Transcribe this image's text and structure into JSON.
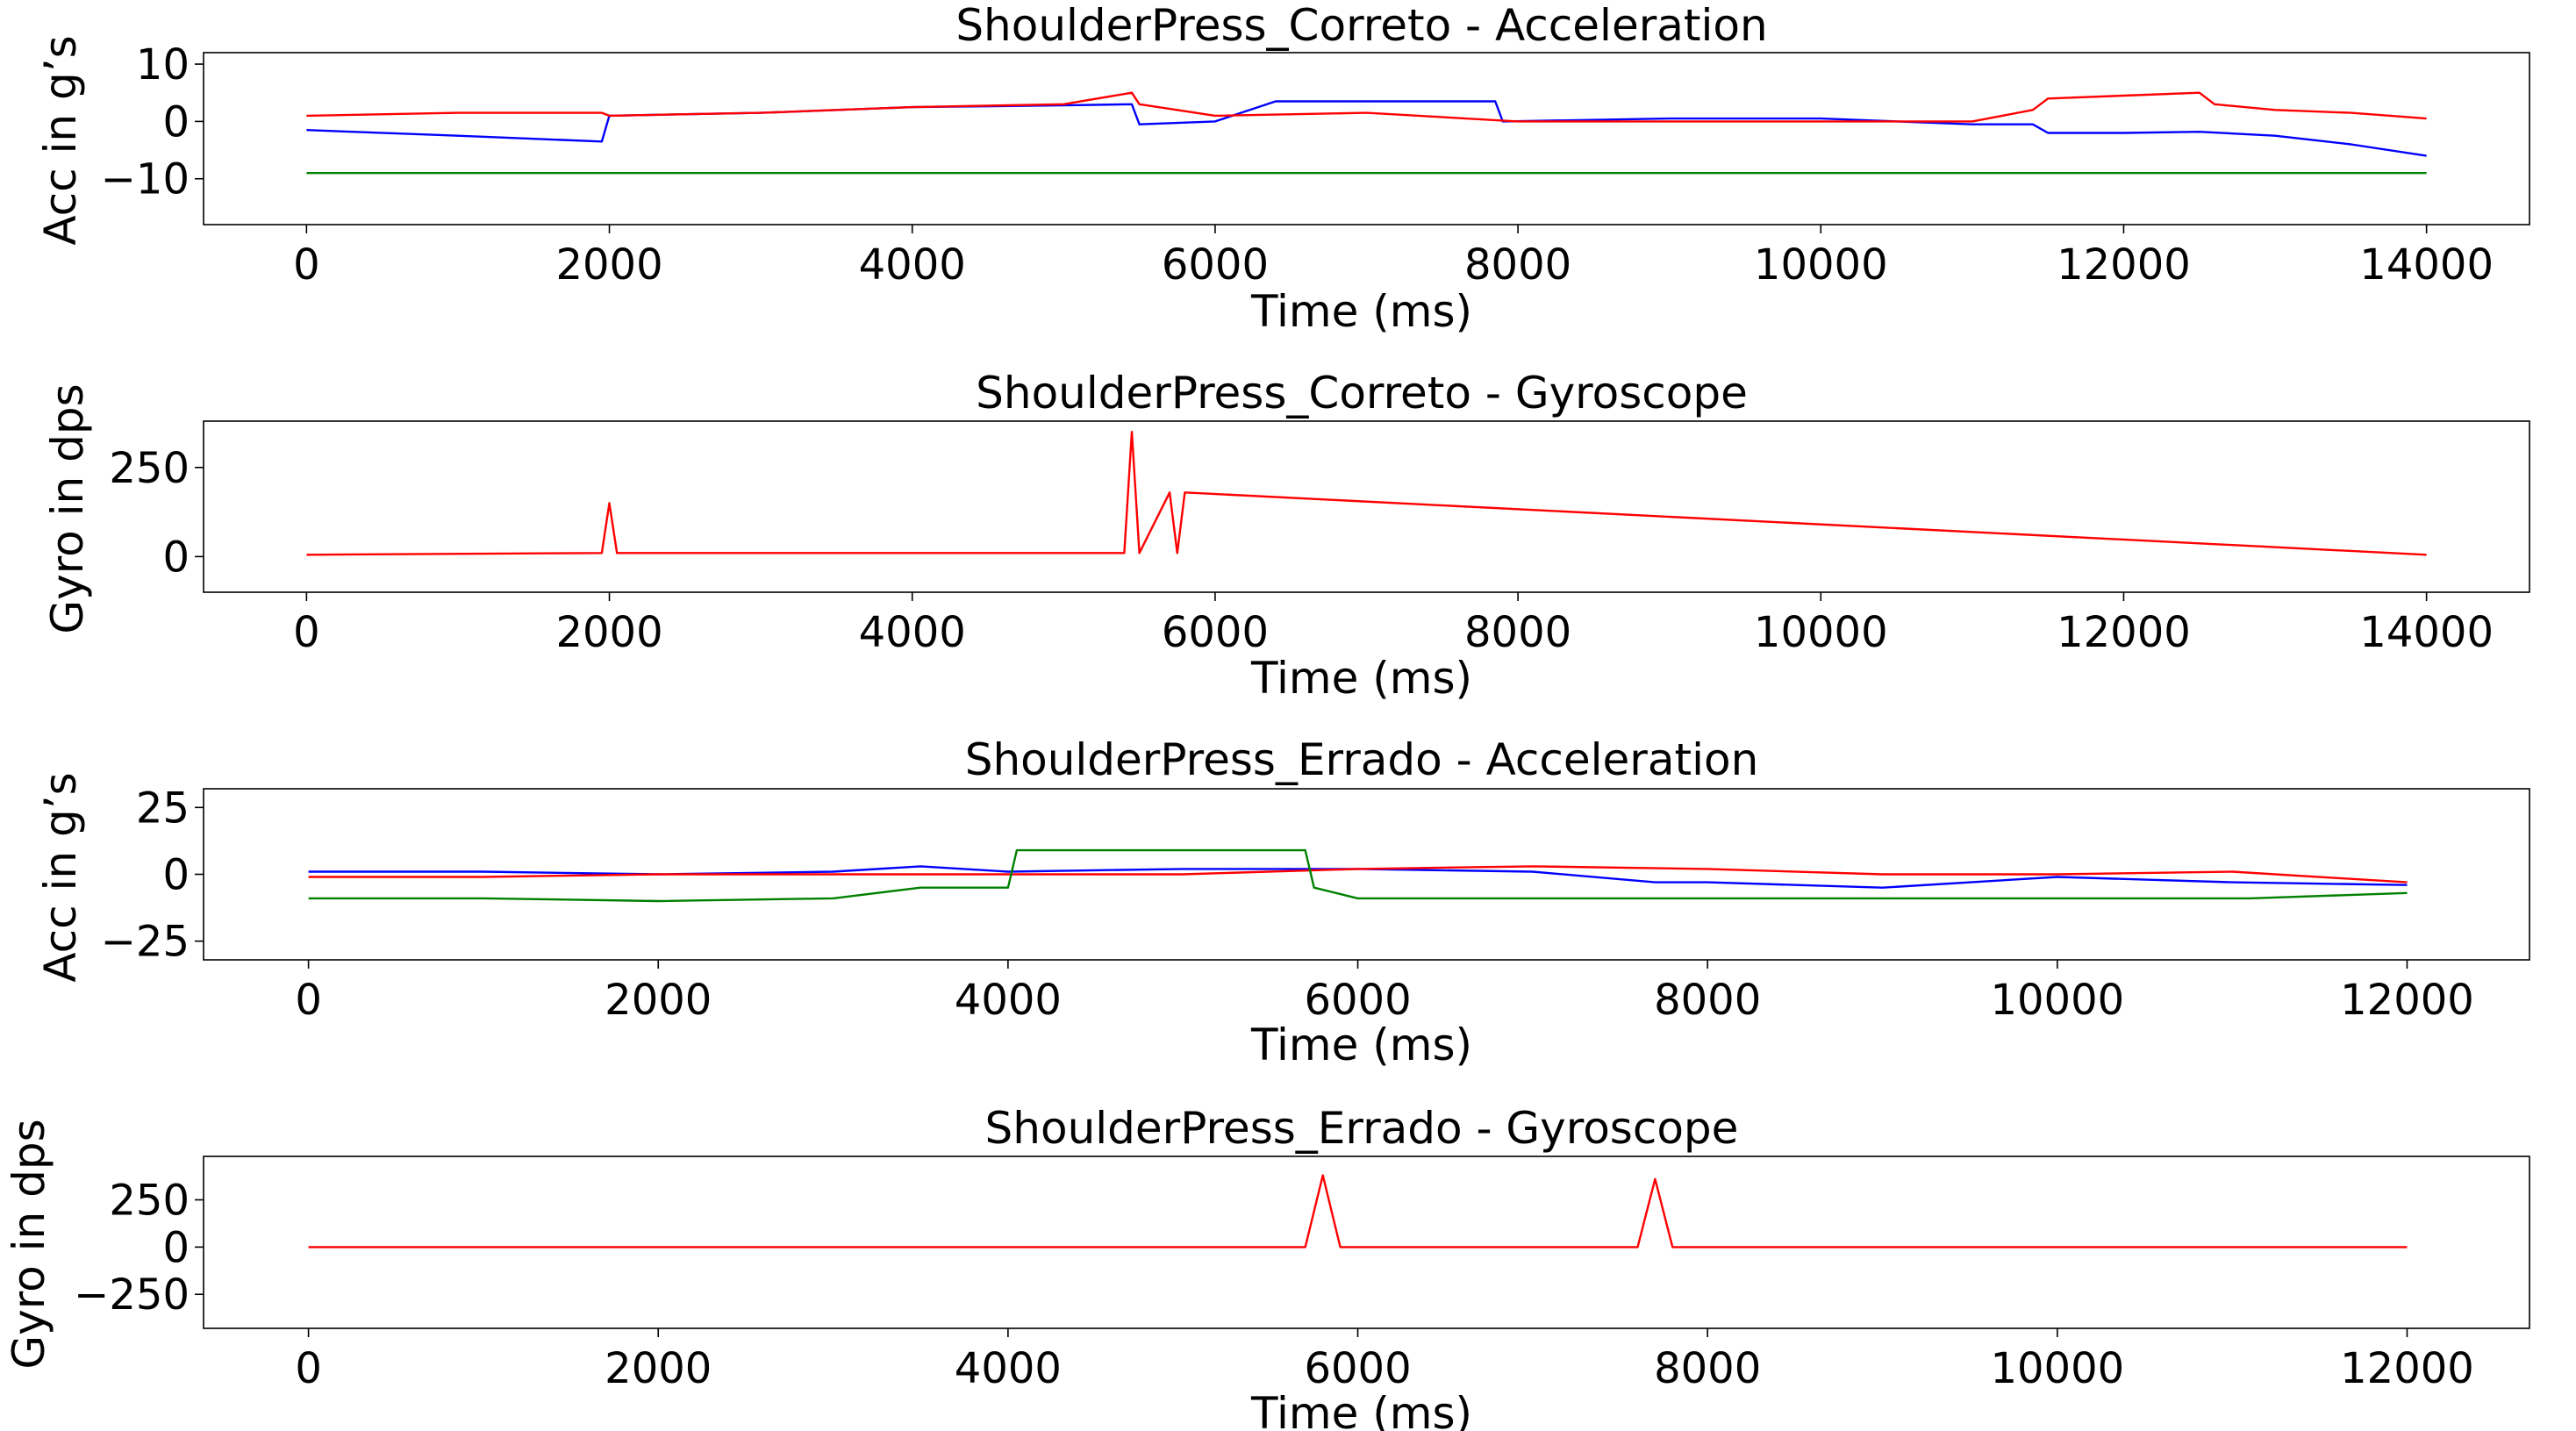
{
  "chart_data": [
    {
      "type": "line",
      "title": "ShoulderPress_Correto - Acceleration",
      "xlabel": "Time (ms)",
      "ylabel": "Acc in g’s",
      "xlim": [
        -680,
        14680
      ],
      "ylim": [
        -18,
        12
      ],
      "xticks": [
        0,
        2000,
        4000,
        6000,
        8000,
        10000,
        12000,
        14000
      ],
      "yticks": [
        -10,
        0,
        10
      ],
      "ytick_labels": [
        "−10",
        "0",
        "10"
      ],
      "grid": false,
      "series": [
        {
          "color": "#0000ff",
          "x": [
            0,
            1000,
            1950,
            2000,
            3000,
            4000,
            5000,
            5450,
            5500,
            6000,
            6400,
            7000,
            7850,
            7900,
            9000,
            10000,
            11000,
            11400,
            11500,
            12000,
            12500,
            13000,
            13500,
            14000
          ],
          "y": [
            -1.5,
            -2.5,
            -3.5,
            1,
            1.5,
            2.5,
            2.8,
            3,
            -0.5,
            0,
            3.5,
            3.5,
            3.5,
            0,
            0.5,
            0.5,
            -0.5,
            -0.5,
            -2,
            -2,
            -1.8,
            -2.5,
            -4,
            -6
          ]
        },
        {
          "color": "#ff0000",
          "x": [
            0,
            1000,
            1950,
            2000,
            3000,
            4000,
            5000,
            5450,
            5500,
            6000,
            7000,
            8000,
            9000,
            10000,
            11000,
            11400,
            11500,
            12000,
            12500,
            12600,
            13000,
            13500,
            14000
          ],
          "y": [
            1,
            1.5,
            1.5,
            1,
            1.5,
            2.5,
            3,
            5,
            3,
            1,
            1.5,
            0,
            0,
            0,
            0,
            2,
            4,
            4.5,
            5,
            3,
            2,
            1.5,
            0.5
          ]
        },
        {
          "color": "#008000",
          "x": [
            0,
            2000,
            4000,
            6000,
            8000,
            10000,
            12000,
            14000
          ],
          "y": [
            -9,
            -9,
            -9,
            -9,
            -9,
            -9,
            -9,
            -9
          ]
        }
      ]
    },
    {
      "type": "line",
      "title": "ShoulderPress_Correto - Gyroscope",
      "xlabel": "Time (ms)",
      "ylabel": "Gyro in dps",
      "xlim": [
        -680,
        14680
      ],
      "ylim": [
        -100,
        380
      ],
      "xticks": [
        0,
        2000,
        4000,
        6000,
        8000,
        10000,
        12000,
        14000
      ],
      "yticks": [
        0,
        250
      ],
      "ytick_labels": [
        "0",
        "250"
      ],
      "grid": false,
      "series": [
        {
          "color": "#ff0000",
          "x": [
            0,
            1950,
            2000,
            2050,
            5400,
            5450,
            5500,
            5700,
            5750,
            5800,
            14000
          ],
          "y": [
            5,
            10,
            150,
            10,
            10,
            350,
            10,
            180,
            10,
            180,
            5
          ]
        }
      ]
    },
    {
      "type": "line",
      "title": "ShoulderPress_Errado - Acceleration",
      "xlabel": "Time (ms)",
      "ylabel": "Acc in g’s",
      "xlim": [
        -600,
        12700
      ],
      "ylim": [
        -32,
        32
      ],
      "xticks": [
        0,
        2000,
        4000,
        6000,
        8000,
        10000,
        12000
      ],
      "yticks": [
        -25,
        0,
        25
      ],
      "ytick_labels": [
        "−25",
        "0",
        "25"
      ],
      "grid": false,
      "series": [
        {
          "color": "#0000ff",
          "x": [
            0,
            1000,
            2000,
            3000,
            3500,
            4000,
            5000,
            6000,
            7000,
            7700,
            8000,
            9000,
            10000,
            11000,
            12000
          ],
          "y": [
            1,
            1,
            0,
            1,
            3,
            1,
            2,
            2,
            1,
            -3,
            -3,
            -5,
            -1,
            -3,
            -4
          ]
        },
        {
          "color": "#ff0000",
          "x": [
            0,
            1000,
            2000,
            3000,
            4000,
            5000,
            6000,
            7000,
            8000,
            9000,
            10000,
            11000,
            12000
          ],
          "y": [
            -1,
            -1,
            0,
            0,
            0,
            0,
            2,
            3,
            2,
            0,
            0,
            1,
            -3
          ]
        },
        {
          "color": "#008000",
          "x": [
            0,
            1000,
            2000,
            3000,
            3500,
            4000,
            4050,
            5000,
            5700,
            5750,
            6000,
            7000,
            8000,
            9000,
            10000,
            11000,
            11100,
            12000
          ],
          "y": [
            -9,
            -9,
            -10,
            -9,
            -5,
            -5,
            9,
            9,
            9,
            -5,
            -9,
            -9,
            -9,
            -9,
            -9,
            -9,
            -9,
            -7
          ]
        }
      ]
    },
    {
      "type": "line",
      "title": "ShoulderPress_Errado - Gyroscope",
      "xlabel": "Time (ms)",
      "ylabel": "Gyro in dps",
      "xlim": [
        -600,
        12700
      ],
      "ylim": [
        -430,
        480
      ],
      "xticks": [
        0,
        2000,
        4000,
        6000,
        8000,
        10000,
        12000
      ],
      "yticks": [
        -250,
        0,
        250
      ],
      "ytick_labels": [
        "−250",
        "0",
        "250"
      ],
      "grid": false,
      "series": [
        {
          "color": "#ff0000",
          "x": [
            0,
            1000,
            2000,
            3000,
            3500,
            4000,
            4500,
            5000,
            5700,
            5800,
            5900,
            7000,
            7600,
            7700,
            7800,
            9000,
            10000,
            10500,
            11000,
            12000
          ],
          "y": [
            0,
            0,
            0,
            0,
            0,
            0,
            0,
            0,
            0,
            380,
            0,
            0,
            0,
            360,
            0,
            0,
            0,
            0,
            0,
            0
          ]
        }
      ]
    }
  ]
}
